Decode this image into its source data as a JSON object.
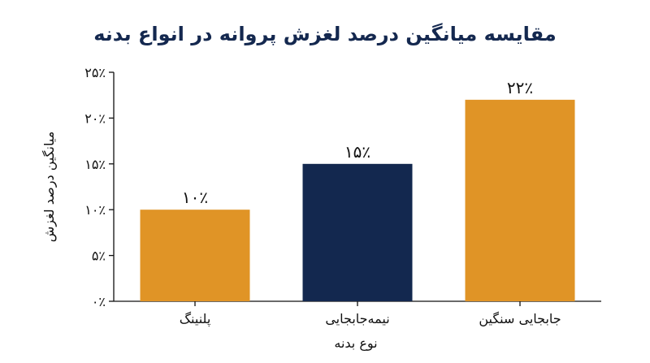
{
  "chart_data": {
    "type": "bar",
    "title": "مقایسه میانگین درصد لغزش پروانه در انواع بدنه",
    "xlabel": "نوع بدنه",
    "ylabel": "میانگین درصد لغزش",
    "categories": [
      "پلنینگ",
      "نیمه‌جابجایی",
      "جابجایی سنگین"
    ],
    "values": [
      10,
      15,
      22
    ],
    "data_labels": [
      "۱۰٪",
      "۱۵٪",
      "۲۲٪"
    ],
    "bar_colors": [
      "#e09426",
      "#13284f",
      "#e09426"
    ],
    "ylim": [
      0,
      25
    ],
    "yticks": [
      0,
      5,
      10,
      15,
      20,
      25
    ],
    "ytick_labels": [
      "۰٪",
      "۵٪",
      "۱۰٪",
      "۱۵٪",
      "۲۰٪",
      "۲۵٪"
    ],
    "grid": false,
    "legend": "none"
  }
}
